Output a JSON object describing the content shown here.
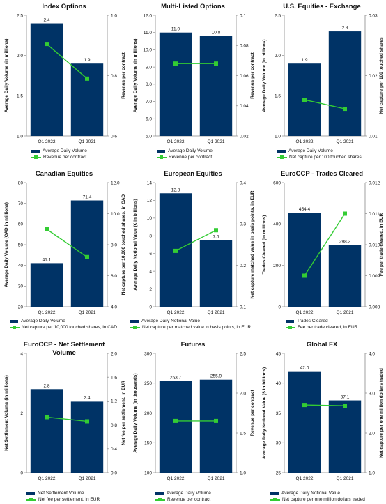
{
  "colors": {
    "bar": "#003366",
    "line": "#33cc33",
    "axis": "#888888",
    "text": "#111111"
  },
  "chart_data": [
    {
      "type": "bar",
      "title": "Index Options",
      "categories": [
        "Q1 2022",
        "Q1 2021"
      ],
      "ylabel": "Average Daily Volume (in millions)",
      "ylim": [
        1.0,
        2.5
      ],
      "yticks": [
        "1.0",
        "1.5",
        "2.0",
        "2.5"
      ],
      "series": [
        {
          "name": "Average Daily Volume",
          "values": [
            2.4,
            1.9
          ],
          "labels": [
            "2.4",
            "1.9"
          ]
        }
      ],
      "y2label": "Revenue per contract",
      "y2lim": [
        0.6,
        1.0
      ],
      "y2ticks": [
        "0.6",
        "0.8",
        "1.0"
      ],
      "line_series": {
        "name": "Revenue per contract",
        "values": [
          0.905,
          0.79
        ]
      }
    },
    {
      "type": "bar",
      "title": "Multi-Listed Options",
      "categories": [
        "Q1 2022",
        "Q1 2021"
      ],
      "ylabel": "Average Daily Volume (in millions)",
      "ylim": [
        5.0,
        12.0
      ],
      "yticks": [
        "5.0",
        "6.0",
        "7.0",
        "8.0",
        "9.0",
        "10.0",
        "11.0",
        "12.0"
      ],
      "series": [
        {
          "name": "Average Daily Volume",
          "values": [
            11.0,
            10.8
          ],
          "labels": [
            "11.0",
            "10.8"
          ]
        }
      ],
      "y2label": "Revenue per contract",
      "y2lim": [
        0.02,
        0.1
      ],
      "y2ticks": [
        "0.02",
        "0.04",
        "0.06",
        "0.08",
        "0.1"
      ],
      "line_series": {
        "name": "Revenue per contract",
        "values": [
          0.068,
          0.068
        ]
      }
    },
    {
      "type": "bar",
      "title": "U.S. Equities - Exchange",
      "categories": [
        "Q1 2022",
        "Q1 2021"
      ],
      "ylabel": "Average Daily Volume (in billions)",
      "ylim": [
        1.0,
        2.5
      ],
      "yticks": [
        "1.0",
        "1.5",
        "2.0",
        "2.5"
      ],
      "series": [
        {
          "name": "Average Daily Volume",
          "values": [
            1.9,
            2.3
          ],
          "labels": [
            "1.9",
            "2.3"
          ]
        }
      ],
      "y2label": "Net capture per 100 touched shares",
      "y2lim": [
        0.01,
        0.03
      ],
      "y2ticks": [
        "0.01",
        "0.02",
        "0.03"
      ],
      "line_series": {
        "name": "Net capture per 100 touched shares",
        "values": [
          0.016,
          0.0145
        ]
      }
    },
    {
      "type": "bar",
      "title": "Canadian Equities",
      "categories": [
        "Q1 2022",
        "Q1 2021"
      ],
      "ylabel": "Average Daily Volume (CAD in millions)",
      "ylim": [
        20,
        80
      ],
      "yticks": [
        "20",
        "30",
        "40",
        "50",
        "60",
        "70",
        "80"
      ],
      "series": [
        {
          "name": "Average Daily Volume",
          "values": [
            41.1,
            71.4
          ],
          "labels": [
            "41.1",
            "71.4"
          ]
        }
      ],
      "y2label": "Net capture per 10,000 touched shares, in CAD",
      "y2lim": [
        4.0,
        12.0
      ],
      "y2ticks": [
        "4.0",
        "6.0",
        "8.0",
        "10.0",
        "12.0"
      ],
      "line_series": {
        "name": "Net capture per 10,000 touched shares, in CAD",
        "values": [
          9.0,
          7.2
        ]
      }
    },
    {
      "type": "bar",
      "title": "European Equities",
      "categories": [
        "Q1 2022",
        "Q1 2021"
      ],
      "ylabel": "Average Daily Notional Value (€ in billions)",
      "ylim": [
        0,
        14
      ],
      "yticks": [
        "0",
        "2",
        "4",
        "6",
        "8",
        "10",
        "12",
        "14"
      ],
      "series": [
        {
          "name": "Average Daily Notional Value",
          "values": [
            12.8,
            7.5
          ],
          "labels": [
            "12.8",
            "7.5"
          ]
        }
      ],
      "y2label": "Net capture matched value in basis points, in EUR",
      "y2lim": [
        0.1,
        0.4
      ],
      "y2ticks": [
        "0.1",
        "0.2",
        "0.3",
        "0.4"
      ],
      "line_series": {
        "name": "Net capture per matched value in basis points, in EUR",
        "values": [
          0.235,
          0.285
        ]
      }
    },
    {
      "type": "bar",
      "title": "EuroCCP - Trades Cleared",
      "categories": [
        "Q1 2022",
        "Q1 2021"
      ],
      "ylabel": "Trades Cleared (in millions)",
      "ylim": [
        0,
        600
      ],
      "yticks": [
        "0",
        "200",
        "400",
        "600"
      ],
      "series": [
        {
          "name": "Trades Cleared",
          "values": [
            454.4,
            298.2
          ],
          "labels": [
            "454.4",
            "298.2"
          ]
        }
      ],
      "y2label": "Fee per trade cleared, in EUR",
      "y2lim": [
        0.008,
        0.012
      ],
      "y2ticks": [
        "0.008",
        "0.009",
        "0.010",
        "0.011",
        "0.012"
      ],
      "line_series": {
        "name": "Fee per trade cleared, in EUR",
        "values": [
          0.009,
          0.011
        ]
      }
    },
    {
      "type": "bar",
      "title": "EuroCCP - Net Settlement Volume",
      "categories": [
        "Q1 2022",
        "Q1 2021"
      ],
      "ylabel": "Net Settlement Volume (in millions)",
      "ylim": [
        0,
        4
      ],
      "yticks": [
        "0",
        "2",
        "4"
      ],
      "series": [
        {
          "name": "Net Settlement Volume",
          "values": [
            2.8,
            2.4
          ],
          "labels": [
            "2.8",
            "2.4"
          ]
        }
      ],
      "y2label": "Net fee per settlement, in EUR",
      "y2lim": [
        0.0,
        2.0
      ],
      "y2ticks": [
        "0.0",
        "0.4",
        "0.8",
        "1.2",
        "1.6",
        "2.0"
      ],
      "line_series": {
        "name": "Net fee per settlement, in EUR",
        "values": [
          0.93,
          0.86
        ]
      }
    },
    {
      "type": "bar",
      "title": "Futures",
      "categories": [
        "Q1 2022",
        "Q1 2021"
      ],
      "ylabel": "Average Daily Volume (in thousands)",
      "ylim": [
        100,
        300
      ],
      "yticks": [
        "100",
        "150",
        "200",
        "250",
        "300"
      ],
      "series": [
        {
          "name": "Average Daily Volume",
          "values": [
            253.7,
            255.9
          ],
          "labels": [
            "253.7",
            "255.9"
          ]
        }
      ],
      "y2label": "Revenue per contract",
      "y2lim": [
        1.0,
        2.5
      ],
      "y2ticks": [
        "1.0",
        "1.5",
        "2.0",
        "2.5"
      ],
      "line_series": {
        "name": "Revenue per contract",
        "values": [
          1.65,
          1.65
        ]
      }
    },
    {
      "type": "bar",
      "title": "Global FX",
      "categories": [
        "Q1 2022",
        "Q1 2021"
      ],
      "ylabel": "Average Daily Notional Value ($ in billions)",
      "ylim": [
        25,
        45
      ],
      "yticks": [
        "25",
        "30",
        "35",
        "40",
        "45"
      ],
      "series": [
        {
          "name": "Average Daily Notional Value",
          "values": [
            42.0,
            37.1
          ],
          "labels": [
            "42.0",
            "37.1"
          ]
        }
      ],
      "y2label": "Net capture per one million dollars traded",
      "y2lim": [
        1.0,
        4.0
      ],
      "y2ticks": [
        "1.0",
        "2.0",
        "3.0",
        "4.0"
      ],
      "line_series": {
        "name": "Net capture per one million dollars traded",
        "values": [
          2.7,
          2.68
        ]
      }
    }
  ]
}
